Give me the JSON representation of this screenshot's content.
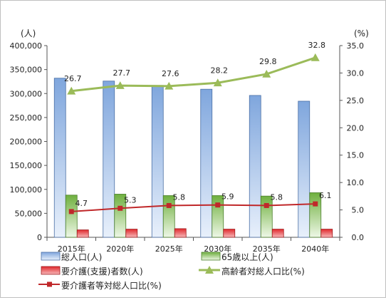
{
  "chart_data": {
    "type": "bar",
    "categories": [
      "2015年",
      "2020年",
      "2025年",
      "2030年",
      "2035年",
      "2040年"
    ],
    "series": [
      {
        "name": "総人口(人)",
        "type": "bar",
        "axis": "left",
        "values": [
          332000,
          326000,
          317000,
          309000,
          296000,
          284000
        ],
        "color": "#8eb4e3"
      },
      {
        "name": "65歳以上(人)",
        "type": "bar",
        "axis": "left",
        "values": [
          88000,
          90000,
          87000,
          87000,
          86000,
          93000
        ],
        "color": "#77b94a"
      },
      {
        "name": "要介護(支援)者数(人)",
        "type": "bar",
        "axis": "left",
        "values": [
          15500,
          17000,
          18000,
          17000,
          17000,
          17000
        ],
        "color": "#e0282c"
      },
      {
        "name": "高齢者対総人口比(%)",
        "type": "line",
        "axis": "right",
        "values": [
          26.7,
          27.7,
          27.6,
          28.2,
          29.8,
          32.8
        ],
        "labels": [
          "26.7",
          "27.7",
          "27.6",
          "28.2",
          "29.8",
          "32.8"
        ],
        "color": "#9bbb59"
      },
      {
        "name": "要介護者等対総人口比(%)",
        "type": "line",
        "axis": "right",
        "values": [
          4.7,
          5.3,
          5.8,
          5.9,
          5.8,
          6.1
        ],
        "labels": [
          "4.7",
          "5.3",
          "5.8",
          "5.9",
          "5.8",
          "6.1"
        ],
        "color": "#c0282a"
      }
    ],
    "y_left": {
      "unit": "(人)",
      "ylim": [
        0,
        400000
      ],
      "ticks": [
        "0",
        "50,000",
        "100,000",
        "150,000",
        "200,000",
        "250,000",
        "300,000",
        "350,000",
        "400,000"
      ]
    },
    "y_right": {
      "unit": "(%)",
      "ylim": [
        0,
        35
      ],
      "ticks": [
        "0.0",
        "5.0",
        "10.0",
        "15.0",
        "20.0",
        "25.0",
        "30.0",
        "35.0"
      ]
    },
    "grid": false,
    "legend_position": "bottom"
  }
}
